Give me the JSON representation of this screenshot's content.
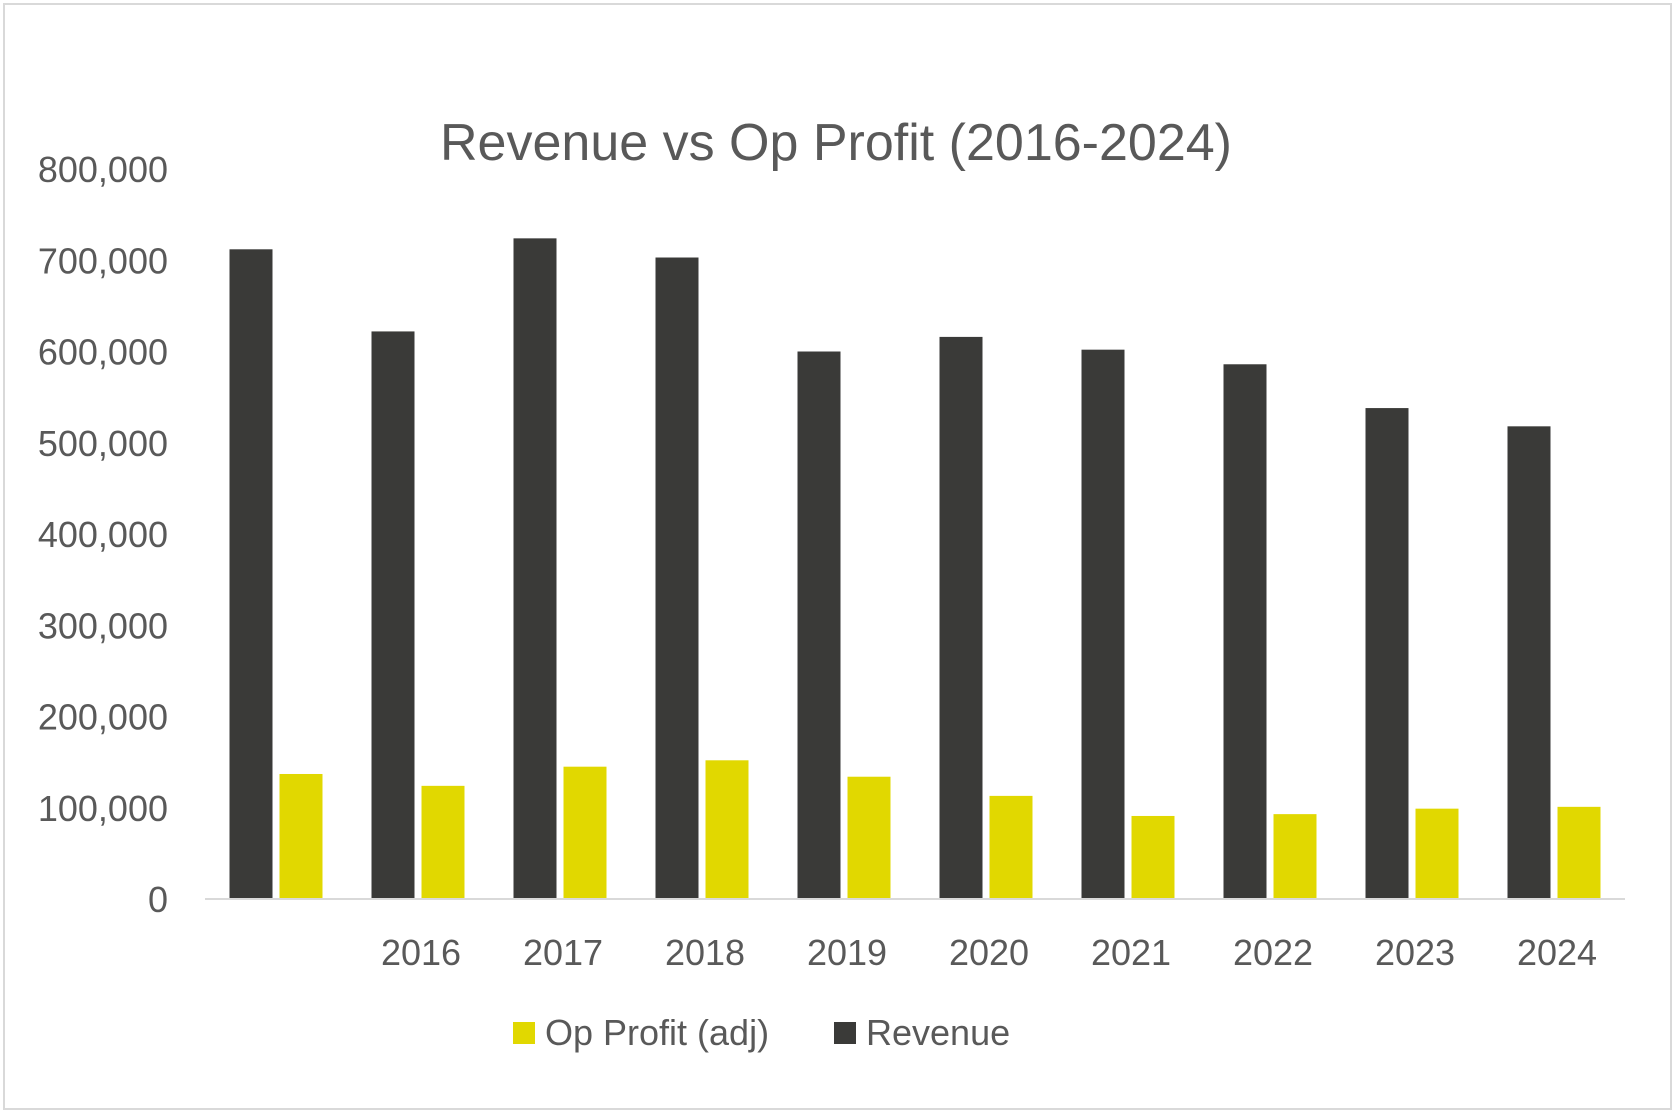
{
  "chart_data": {
    "type": "bar",
    "title": "Revenue vs Op  Profit (2016-2024)",
    "xlabel": "",
    "ylabel": "",
    "ylim": [
      0,
      800000
    ],
    "y_ticks": [
      "0",
      "100,000",
      "200,000",
      "300,000",
      "400,000",
      "500,000",
      "600,000",
      "700,000",
      "800,000"
    ],
    "categories": [
      "",
      "2016",
      "2017",
      "2018",
      "2019",
      "2020",
      "2021",
      "2022",
      "2023",
      "2024"
    ],
    "series": [
      {
        "name": "Revenue",
        "color": "#3a3a38",
        "values": [
          712000,
          622000,
          724000,
          703000,
          600000,
          616000,
          602000,
          586000,
          538000,
          518000
        ]
      },
      {
        "name": "Op Profit (adj)",
        "color": "#e1d800",
        "values": [
          137000,
          124000,
          145000,
          152000,
          134000,
          113000,
          91000,
          93000,
          99000,
          101000
        ]
      }
    ],
    "legend": {
      "position": "bottom",
      "order": [
        "Op Profit (adj)",
        "Revenue"
      ]
    },
    "grid": false
  }
}
